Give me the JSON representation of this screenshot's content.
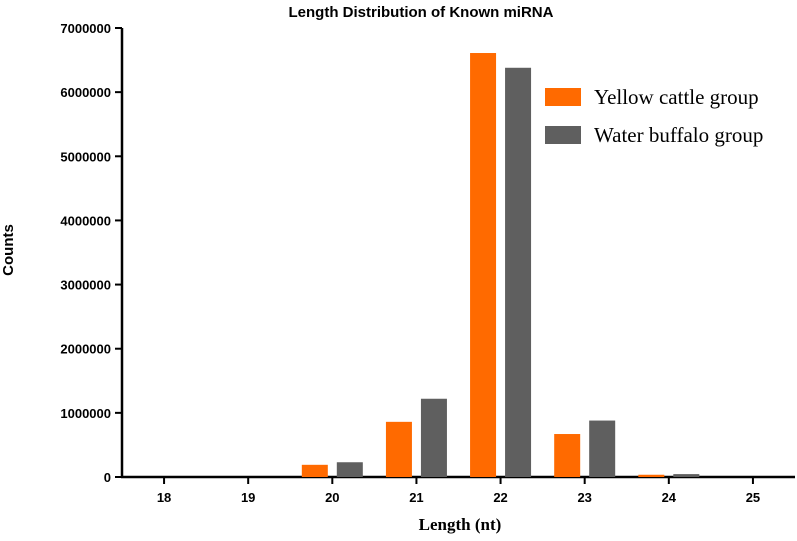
{
  "chart_data": {
    "type": "bar",
    "title": "Length Distribution of Known miRNA",
    "xlabel": "Length (nt)",
    "ylabel": "Counts",
    "categories": [
      "18",
      "19",
      "20",
      "21",
      "22",
      "23",
      "24",
      "25"
    ],
    "series": [
      {
        "name": "Yellow cattle group",
        "color": "#ff6a00",
        "values": [
          0,
          0,
          190000,
          860000,
          6610000,
          670000,
          35000,
          0
        ]
      },
      {
        "name": "Water buffalo group",
        "color": "#5f5f5f",
        "values": [
          0,
          0,
          230000,
          1220000,
          6380000,
          880000,
          45000,
          0
        ]
      }
    ],
    "ylim": [
      0,
      7000000
    ],
    "yticks": [
      "0",
      "1000000",
      "2000000",
      "3000000",
      "4000000",
      "5000000",
      "6000000",
      "7000000"
    ],
    "grid": false,
    "legend_position": "top-right"
  }
}
